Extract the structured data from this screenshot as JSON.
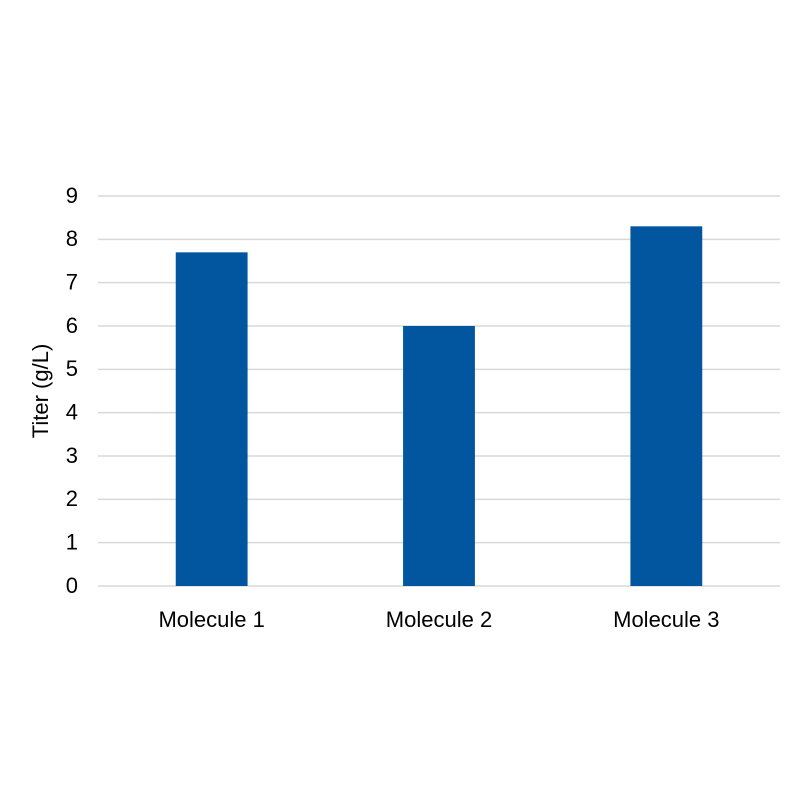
{
  "chart_data": {
    "type": "bar",
    "y_label": "Titer (g/L)",
    "categories": [
      "Molecule 1",
      "Molecule 2",
      "Molecule 3"
    ],
    "values": [
      7.7,
      6.0,
      8.3
    ],
    "color": "#02569f",
    "ylim": [
      0,
      9
    ],
    "yticks": [
      0,
      1,
      2,
      3,
      4,
      5,
      6,
      7,
      8,
      9
    ],
    "grid": true
  }
}
